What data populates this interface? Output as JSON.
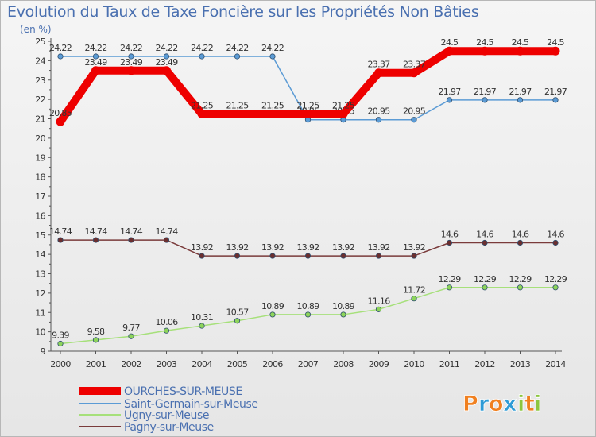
{
  "chart_data": {
    "type": "line",
    "title": "Evolution du Taux de Taxe Foncière sur les Propriétés Non Bâties",
    "unit_label": "(en %)",
    "xlabel": "",
    "ylabel": "",
    "ylim": [
      9,
      25
    ],
    "yticks": [
      9,
      10,
      11,
      12,
      13,
      14,
      15,
      16,
      17,
      18,
      19,
      20,
      21,
      22,
      23,
      24,
      25
    ],
    "grid": false,
    "legend_position": "bottom-left",
    "categories": [
      "2000",
      "2001",
      "2002",
      "2003",
      "2004",
      "2005",
      "2006",
      "2007",
      "2008",
      "2009",
      "2010",
      "2011",
      "2012",
      "2013",
      "2014"
    ],
    "series": [
      {
        "name": "Saint-Germain-sur-Meuse",
        "color": "#5b9bd5",
        "marker_fill": "#5b9bd5",
        "values": [
          24.22,
          24.22,
          24.22,
          24.22,
          24.22,
          24.22,
          24.22,
          20.95,
          20.95,
          20.95,
          20.95,
          21.97,
          21.97,
          21.97,
          21.97
        ],
        "labels": [
          "24.22",
          "24.22",
          "24.22",
          "24.22",
          "24.22",
          "24.22",
          "24.22",
          "20.95",
          "20.95",
          "20.95",
          "20.95",
          "21.97",
          "21.97",
          "21.97",
          "21.97"
        ]
      },
      {
        "name": "Pagny-sur-Meuse",
        "color": "#7a3b3b",
        "marker_fill": "#6b2f2f",
        "values": [
          14.74,
          14.74,
          14.74,
          14.74,
          13.92,
          13.92,
          13.92,
          13.92,
          13.92,
          13.92,
          13.92,
          14.6,
          14.6,
          14.6,
          14.6
        ],
        "labels": [
          "14.74",
          "14.74",
          "14.74",
          "14.74",
          "13.92",
          "13.92",
          "13.92",
          "13.92",
          "13.92",
          "13.92",
          "13.92",
          "14.6",
          "14.6",
          "14.6",
          "14.6"
        ]
      },
      {
        "name": "Ugny-sur-Meuse",
        "color": "#a6e07a",
        "marker_fill": "#8dd45a",
        "values": [
          9.39,
          9.58,
          9.77,
          10.06,
          10.31,
          10.57,
          10.89,
          10.89,
          10.89,
          11.16,
          11.72,
          12.29,
          12.29,
          12.29,
          12.29
        ],
        "labels": [
          "9.39",
          "9.58",
          "9.77",
          "10.06",
          "10.31",
          "10.57",
          "10.89",
          "10.89",
          "10.89",
          "11.16",
          "11.72",
          "12.29",
          "12.29",
          "12.29",
          "12.29"
        ]
      },
      {
        "name": "OURCHES-SUR-MEUSE",
        "color": "#ee0000",
        "marker_fill": "#ee0000",
        "values": [
          20.85,
          23.49,
          23.49,
          23.49,
          21.25,
          21.25,
          21.25,
          21.25,
          21.25,
          23.37,
          23.37,
          24.5,
          24.5,
          24.5,
          24.5
        ],
        "labels": [
          "20.85",
          "23.49",
          "23.49",
          "23.49",
          "21.25",
          "21.25",
          "21.25",
          "21.25",
          "21.25",
          "23.37",
          "23.37",
          "24.5",
          "24.5",
          "24.5",
          "24.5"
        ]
      }
    ],
    "legend": [
      "OURCHES-SUR-MEUSE",
      "Saint-Germain-sur-Meuse",
      "Ugny-sur-Meuse",
      "Pagny-sur-Meuse"
    ]
  },
  "brand": {
    "letters": [
      "P",
      "r",
      "o",
      "x",
      "i",
      "t",
      "i"
    ],
    "colors": [
      "#f08020",
      "#2e9bd6",
      "#f08020",
      "#2e9bd6",
      "#8cc63f",
      "#f08020",
      "#8cc63f"
    ]
  }
}
